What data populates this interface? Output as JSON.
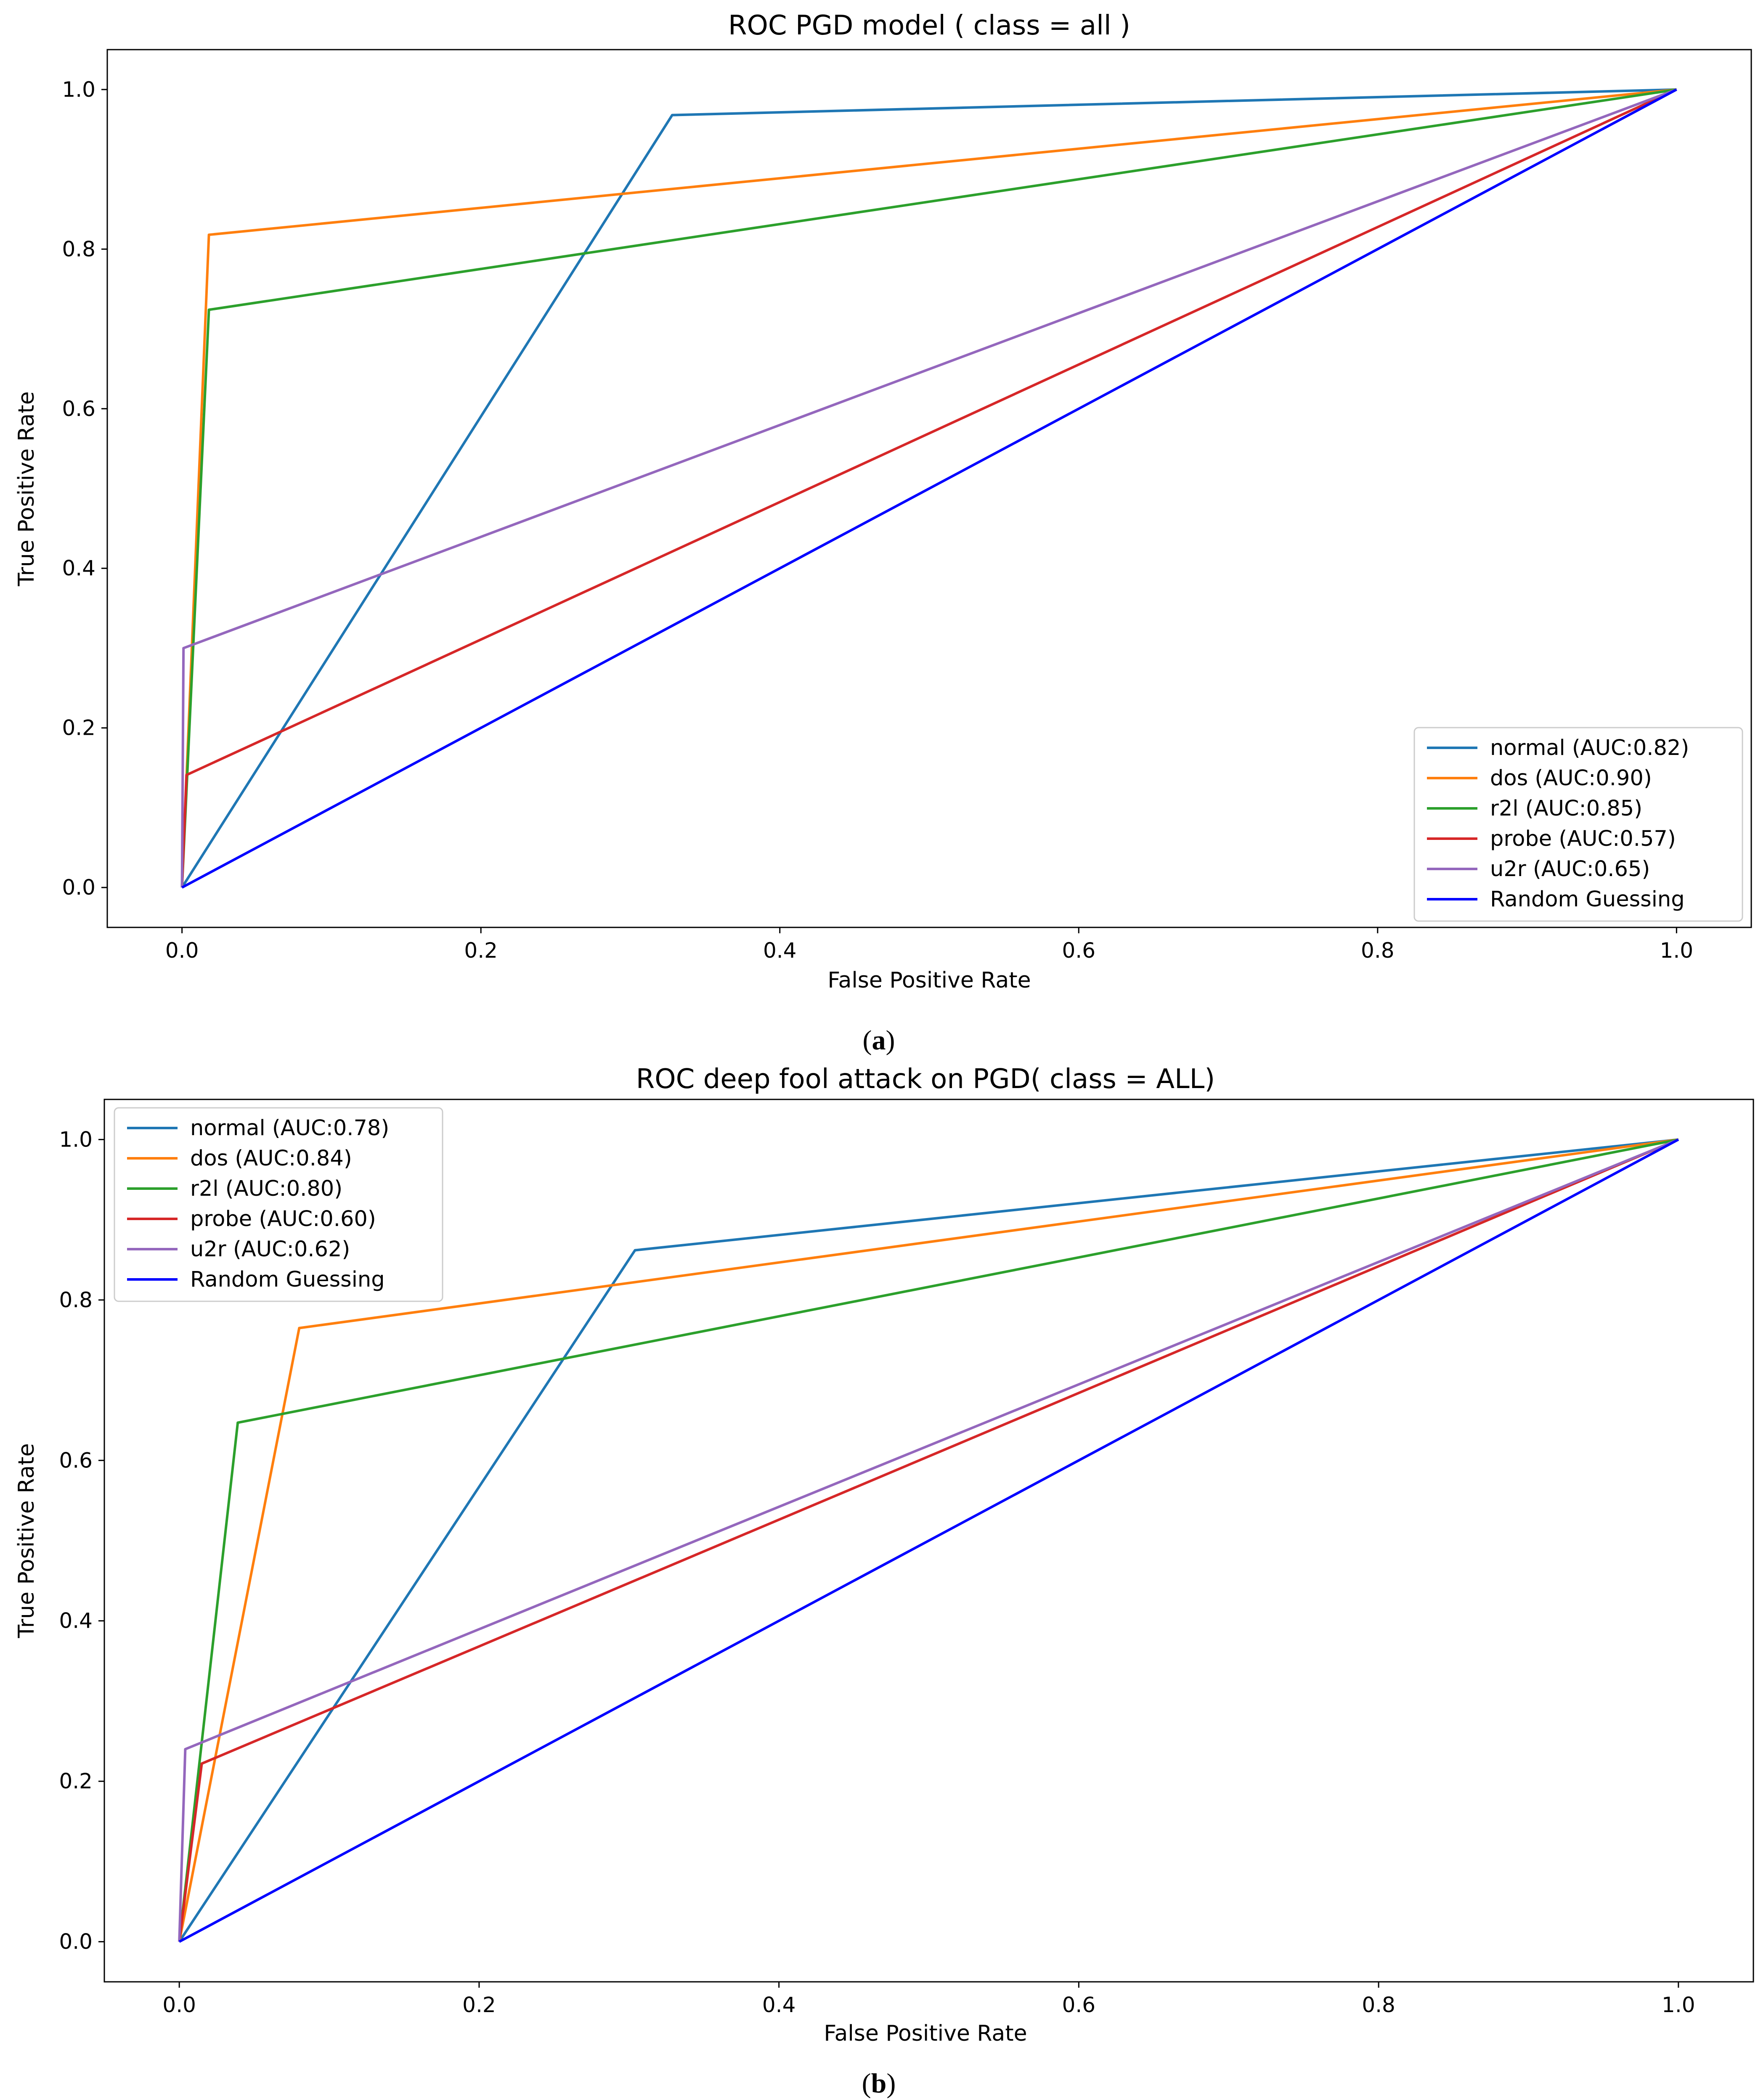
{
  "chart_data": [
    {
      "type": "line",
      "title": "ROC PGD model ( class = all )",
      "xlabel": "False Positive Rate",
      "ylabel": "True Positive Rate",
      "xlim": [
        -0.05,
        1.05
      ],
      "ylim": [
        -0.05,
        1.05
      ],
      "xticks": [
        "0.0",
        "0.2",
        "0.4",
        "0.6",
        "0.8",
        "1.0"
      ],
      "yticks": [
        "0.0",
        "0.2",
        "0.4",
        "0.6",
        "0.8",
        "1.0"
      ],
      "legend_position": "lower-right",
      "caption_open": "(",
      "caption_letter": "a",
      "caption_close": ")",
      "series": [
        {
          "name": "normal (AUC:0.82)",
          "color": "#1f77b4",
          "x": [
            0,
            0.328,
            1
          ],
          "y": [
            0,
            0.968,
            1
          ]
        },
        {
          "name": "dos (AUC:0.90)",
          "color": "#ff7f0e",
          "x": [
            0,
            0.018,
            1
          ],
          "y": [
            0,
            0.818,
            1
          ]
        },
        {
          "name": "r2l (AUC:0.85)",
          "color": "#2ca02c",
          "x": [
            0,
            0.018,
            1
          ],
          "y": [
            0,
            0.724,
            1
          ]
        },
        {
          "name": "probe (AUC:0.57)",
          "color": "#d62728",
          "x": [
            0,
            0.003,
            1
          ],
          "y": [
            0,
            0.141,
            1
          ]
        },
        {
          "name": "u2r (AUC:0.65)",
          "color": "#9467bd",
          "x": [
            0,
            0.001,
            1
          ],
          "y": [
            0,
            0.3,
            1
          ]
        },
        {
          "name": "Random Guessing",
          "color": "#0000ff",
          "x": [
            0,
            1
          ],
          "y": [
            0,
            1
          ]
        }
      ]
    },
    {
      "type": "line",
      "title": "ROC deep fool attack on PGD( class = ALL)",
      "xlabel": "False Positive Rate",
      "ylabel": "True Positive Rate",
      "xlim": [
        -0.05,
        1.05
      ],
      "ylim": [
        -0.05,
        1.05
      ],
      "xticks": [
        "0.0",
        "0.2",
        "0.4",
        "0.6",
        "0.8",
        "1.0"
      ],
      "yticks": [
        "0.0",
        "0.2",
        "0.4",
        "0.6",
        "0.8",
        "1.0"
      ],
      "legend_position": "upper-left",
      "caption_open": "(",
      "caption_letter": "b",
      "caption_close": ")",
      "series": [
        {
          "name": "normal (AUC:0.78)",
          "color": "#1f77b4",
          "x": [
            0,
            0.304,
            1
          ],
          "y": [
            0,
            0.862,
            1
          ]
        },
        {
          "name": "dos (AUC:0.84)",
          "color": "#ff7f0e",
          "x": [
            0,
            0.08,
            1
          ],
          "y": [
            0,
            0.765,
            1
          ]
        },
        {
          "name": "r2l (AUC:0.80)",
          "color": "#2ca02c",
          "x": [
            0,
            0.039,
            1
          ],
          "y": [
            0,
            0.647,
            1
          ]
        },
        {
          "name": "probe (AUC:0.60)",
          "color": "#d62728",
          "x": [
            0,
            0.015,
            1
          ],
          "y": [
            0,
            0.222,
            1
          ]
        },
        {
          "name": "u2r (AUC:0.62)",
          "color": "#9467bd",
          "x": [
            0,
            0.004,
            1
          ],
          "y": [
            0,
            0.24,
            1
          ]
        },
        {
          "name": "Random Guessing",
          "color": "#0000ff",
          "x": [
            0,
            1
          ],
          "y": [
            0,
            1
          ]
        }
      ]
    }
  ]
}
